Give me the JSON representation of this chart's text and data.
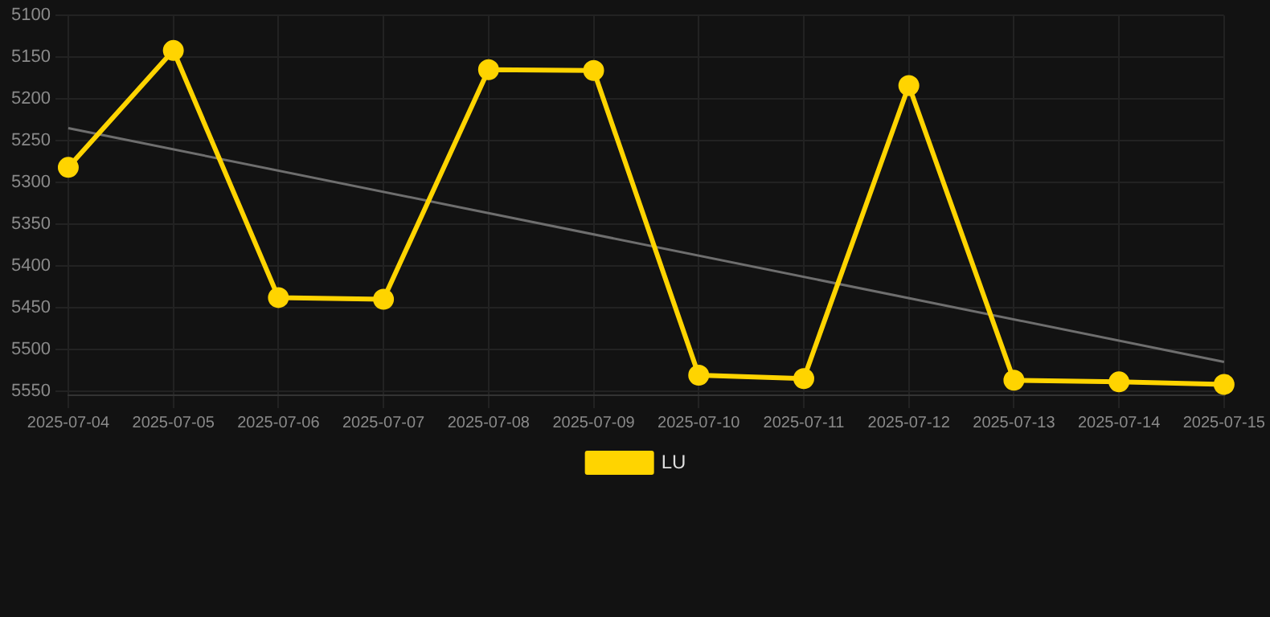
{
  "chart_data": {
    "type": "line",
    "categories": [
      "2025-07-04",
      "2025-07-05",
      "2025-07-06",
      "2025-07-07",
      "2025-07-08",
      "2025-07-09",
      "2025-07-10",
      "2025-07-11",
      "2025-07-12",
      "2025-07-13",
      "2025-07-14",
      "2025-07-15"
    ],
    "series": [
      {
        "name": "LU",
        "color": "#ffd400",
        "values": [
          5282,
          5142,
          5438,
          5440,
          5165,
          5166,
          5531,
          5535,
          5184,
          5537,
          5539,
          5542
        ],
        "marker": "circle"
      },
      {
        "type": "line",
        "color": "#6e6e6e",
        "values": [
          5235,
          null,
          null,
          null,
          null,
          null,
          null,
          null,
          null,
          null,
          null,
          5515
        ],
        "marker": "none"
      }
    ],
    "ylim": [
      5555,
      5100
    ],
    "yticks": [
      5100,
      5150,
      5200,
      5250,
      5300,
      5350,
      5400,
      5450,
      5500,
      5550
    ],
    "grid": true,
    "legend": "bottom"
  }
}
